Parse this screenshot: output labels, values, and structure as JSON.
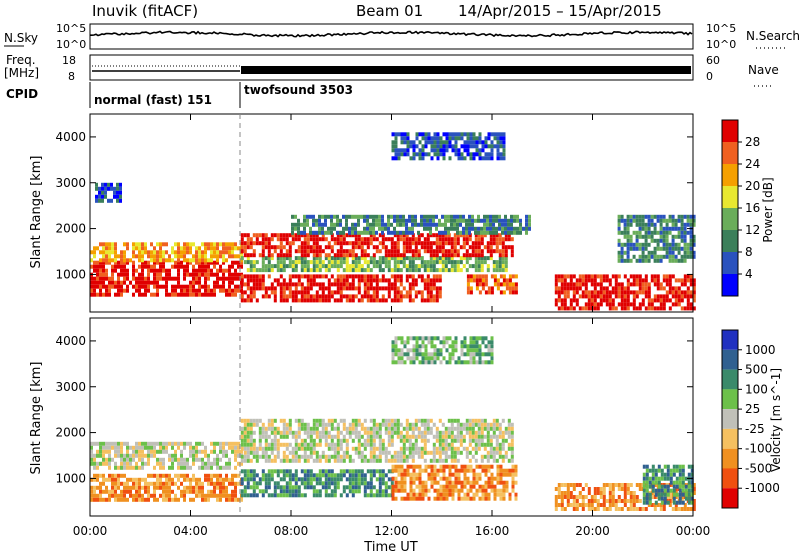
{
  "header": {
    "station": "Inuvik (fitACF)",
    "beam": "Beam 01",
    "date_range": "14/Apr/2015 – 15/Apr/2015"
  },
  "noise_panel": {
    "left_label": "N.Sky",
    "right_label": "N.Search",
    "left_ticks": [
      "10^5",
      "10^0"
    ],
    "right_ticks": [
      "10^5",
      "10^0"
    ]
  },
  "freq_panel": {
    "left_label_1": "Freq.",
    "left_label_2": "[MHz]",
    "left_ticks": [
      "18",
      "8"
    ],
    "right_ticks": [
      "60",
      "0"
    ],
    "right_label": "Nave"
  },
  "cpid": {
    "label": "CPID",
    "segments": [
      {
        "name": "normal (fast) 151",
        "start_hour": 0,
        "end_hour": 6
      },
      {
        "name": "twofsound 3503",
        "start_hour": 6,
        "end_hour": 24
      }
    ]
  },
  "x_axis": {
    "label": "Time UT",
    "ticks": [
      "00:00",
      "04:00",
      "08:00",
      "12:00",
      "16:00",
      "20:00",
      "00:00"
    ]
  },
  "chart_data": [
    {
      "type": "heatmap",
      "name": "Power",
      "ylabel": "Slant Range [km]",
      "y_ticks": [
        "1000",
        "2000",
        "3000",
        "4000"
      ],
      "ylim": [
        180,
        4500
      ],
      "xlim_hours": [
        0,
        24
      ],
      "colorbar_label": "Power [dB]",
      "colorbar_ticks": [
        "4",
        "8",
        "12",
        "16",
        "20",
        "24",
        "28"
      ],
      "colorbar_colors": [
        "#0000ff",
        "#2a52be",
        "#3b7f5a",
        "#6aad5a",
        "#e8e830",
        "#f5a000",
        "#f06020",
        "#e00000"
      ],
      "bands": [
        {
          "t0": 0,
          "t1": 6,
          "r0": 600,
          "r1": 1300,
          "level": 7
        },
        {
          "t0": 0,
          "t1": 6,
          "r0": 1300,
          "r1": 1700,
          "level": 5
        },
        {
          "t0": 0.2,
          "t1": 1.2,
          "r0": 2600,
          "r1": 3000,
          "level": 1
        },
        {
          "t0": 6,
          "t1": 14,
          "r0": 400,
          "r1": 1000,
          "level": 7
        },
        {
          "t0": 6,
          "t1": 16.6,
          "r0": 1100,
          "r1": 1400,
          "level": 3
        },
        {
          "t0": 6,
          "t1": 16.8,
          "r0": 1400,
          "r1": 1900,
          "level": 7
        },
        {
          "t0": 8,
          "t1": 17.5,
          "r0": 1900,
          "r1": 2300,
          "level": 2
        },
        {
          "t0": 12,
          "t1": 16.5,
          "r0": 3500,
          "r1": 4100,
          "level": 1
        },
        {
          "t0": 15,
          "t1": 17,
          "r0": 600,
          "r1": 1000,
          "level": 6
        },
        {
          "t0": 18.5,
          "t1": 24,
          "r0": 250,
          "r1": 1000,
          "level": 7
        },
        {
          "t0": 21,
          "t1": 24,
          "r0": 1300,
          "r1": 2300,
          "level": 2
        }
      ]
    },
    {
      "type": "heatmap",
      "name": "Velocity",
      "ylabel": "Slant Range [km]",
      "y_ticks": [
        "1000",
        "2000",
        "3000",
        "4000"
      ],
      "ylim": [
        180,
        4500
      ],
      "xlim_hours": [
        0,
        24
      ],
      "colorbar_label": "Velocity [m s^-1]",
      "colorbar_ticks": [
        "1000",
        "500",
        "100",
        "25",
        "-25",
        "-100",
        "-500",
        "-1000"
      ],
      "colorbar_colors": [
        "#2030c0",
        "#306090",
        "#3a8a6a",
        "#6cc04a",
        "#c0c0b8",
        "#f5c060",
        "#f09020",
        "#f05010",
        "#e00000"
      ],
      "bands": [
        {
          "t0": 0,
          "t1": 6,
          "r0": 1200,
          "r1": 1800,
          "level": 4
        },
        {
          "t0": 0,
          "t1": 6,
          "r0": 500,
          "r1": 1100,
          "level": 6
        },
        {
          "t0": 6,
          "t1": 16.8,
          "r0": 1400,
          "r1": 2300,
          "level": 4
        },
        {
          "t0": 6,
          "t1": 12,
          "r0": 650,
          "r1": 1200,
          "level": 2
        },
        {
          "t0": 12,
          "t1": 17,
          "r0": 600,
          "r1": 1300,
          "level": 6
        },
        {
          "t0": 12,
          "t1": 16,
          "r0": 3500,
          "r1": 4100,
          "level": 3
        },
        {
          "t0": 18.5,
          "t1": 24,
          "r0": 300,
          "r1": 900,
          "level": 6
        },
        {
          "t0": 22,
          "t1": 24,
          "r0": 500,
          "r1": 1300,
          "level": 2
        }
      ]
    }
  ]
}
